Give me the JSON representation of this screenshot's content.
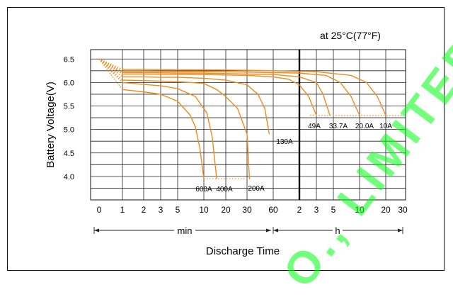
{
  "chart_data": {
    "type": "line",
    "title": "",
    "annotation": "at 25°C(77°F)",
    "xlabel": "Discharge Time",
    "ylabel": "Battery Voltage(V)",
    "ylim": [
      3.5,
      6.7
    ],
    "y_ticks": [
      "6.5",
      "6.0",
      "5.5",
      "5.0",
      "4.5",
      "4.0"
    ],
    "y_tick_values": [
      6.5,
      6.0,
      5.5,
      5.0,
      4.5,
      4.0
    ],
    "x_tick_labels": [
      "0",
      "1",
      "2",
      "3",
      "5",
      "10",
      "20",
      "30",
      "60",
      "2",
      "3",
      "5",
      "10",
      "20",
      "30"
    ],
    "x_unit_labels": {
      "minutes": "min",
      "hours": "h"
    },
    "grid": true,
    "series": [
      {
        "name": "600A",
        "x_minutes": [
          0,
          1,
          2,
          3,
          5,
          7,
          8,
          9,
          10
        ],
        "y": [
          6.5,
          5.85,
          5.8,
          5.75,
          5.6,
          5.3,
          5.05,
          4.6,
          3.95
        ]
      },
      {
        "name": "400A",
        "x_minutes": [
          0,
          1,
          2,
          3,
          5,
          8,
          11,
          13,
          15
        ],
        "y": [
          6.5,
          6.0,
          5.96,
          5.93,
          5.87,
          5.7,
          5.35,
          4.85,
          3.95
        ]
      },
      {
        "name": "200A",
        "x_minutes": [
          0,
          1,
          2,
          3,
          5,
          10,
          15,
          20,
          25,
          30,
          32
        ],
        "y": [
          6.5,
          6.05,
          6.04,
          6.03,
          6.02,
          5.98,
          5.85,
          5.7,
          5.45,
          4.9,
          3.95
        ]
      },
      {
        "name": "130A",
        "x_minutes": [
          0,
          1,
          2,
          3,
          5,
          10,
          20,
          30,
          40,
          48,
          54
        ],
        "y": [
          6.5,
          6.12,
          6.12,
          6.11,
          6.11,
          6.09,
          6.05,
          5.95,
          5.75,
          5.45,
          4.9
        ]
      },
      {
        "name": "49A",
        "x_minutes": [
          0,
          1,
          2,
          5,
          10,
          20,
          30,
          60,
          90,
          120,
          150,
          180
        ],
        "y": [
          6.5,
          6.18,
          6.18,
          6.17,
          6.17,
          6.16,
          6.15,
          6.12,
          6.07,
          5.95,
          5.7,
          5.3
        ]
      },
      {
        "name": "33.7A",
        "x_minutes": [
          0,
          1,
          2,
          5,
          10,
          20,
          30,
          60,
          120,
          180,
          220,
          270
        ],
        "y": [
          6.5,
          6.21,
          6.21,
          6.2,
          6.2,
          6.19,
          6.18,
          6.17,
          6.12,
          6.0,
          5.75,
          5.3
        ]
      },
      {
        "name": "20.0A",
        "x_minutes": [
          0,
          1,
          2,
          5,
          10,
          30,
          60,
          120,
          240,
          360,
          480,
          600
        ],
        "y": [
          6.5,
          6.24,
          6.24,
          6.23,
          6.23,
          6.22,
          6.21,
          6.2,
          6.15,
          6.0,
          5.7,
          5.3
        ]
      },
      {
        "name": "10A",
        "x_minutes": [
          0,
          1,
          2,
          5,
          10,
          30,
          60,
          180,
          480,
          720,
          960,
          1200
        ],
        "y": [
          6.5,
          6.28,
          6.28,
          6.27,
          6.27,
          6.26,
          6.25,
          6.23,
          6.15,
          6.0,
          5.7,
          5.3
        ]
      }
    ]
  },
  "watermark": "O., LIMITED"
}
